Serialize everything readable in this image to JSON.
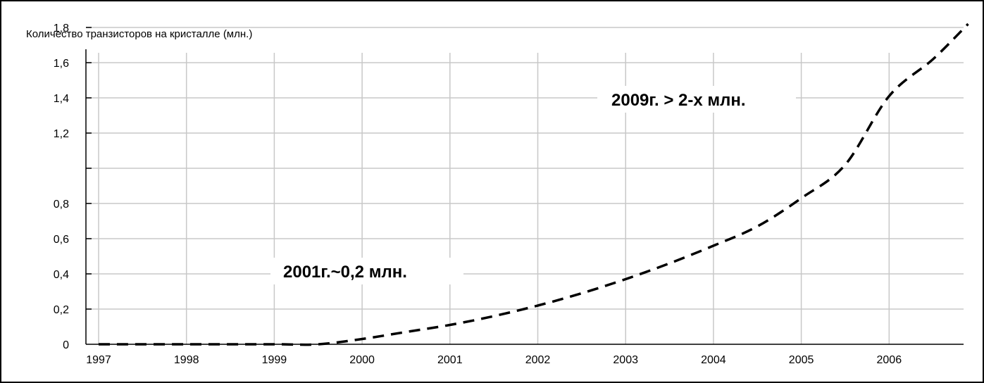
{
  "chart_data": {
    "type": "line",
    "title": "Количество транзисторов на кристалле (млн.)",
    "xlabel": "",
    "ylabel": "",
    "x_ticks": [
      "1997",
      "1998",
      "1999",
      "2000",
      "2001",
      "2002",
      "2003",
      "2004",
      "2005",
      "2006"
    ],
    "y_ticks": [
      "0",
      "0,2",
      "0,4",
      "0,6",
      "0,8",
      "1,2",
      "1,4",
      "1,6",
      "1,8"
    ],
    "xlim": [
      1997,
      2006.95
    ],
    "ylim": [
      0,
      1.8
    ],
    "grid": true,
    "series": [
      {
        "style": "dashed",
        "color": "#000000",
        "points": [
          {
            "x": 1997.0,
            "y": 0.0
          },
          {
            "x": 1998.0,
            "y": 0.0
          },
          {
            "x": 1999.0,
            "y": 0.0
          },
          {
            "x": 1999.5,
            "y": 0.0
          },
          {
            "x": 2000.0,
            "y": 0.03
          },
          {
            "x": 2000.5,
            "y": 0.07
          },
          {
            "x": 2001.0,
            "y": 0.11
          },
          {
            "x": 2001.5,
            "y": 0.16
          },
          {
            "x": 2002.0,
            "y": 0.22
          },
          {
            "x": 2002.5,
            "y": 0.29
          },
          {
            "x": 2003.0,
            "y": 0.37
          },
          {
            "x": 2003.5,
            "y": 0.46
          },
          {
            "x": 2004.0,
            "y": 0.56
          },
          {
            "x": 2004.5,
            "y": 0.67
          },
          {
            "x": 2005.0,
            "y": 0.83
          },
          {
            "x": 2005.5,
            "y": 1.02
          },
          {
            "x": 2006.0,
            "y": 1.41
          },
          {
            "x": 2006.5,
            "y": 1.62
          },
          {
            "x": 2006.9,
            "y": 1.82
          }
        ]
      }
    ],
    "annotations": [
      "2009г. > 2-х млн.",
      "2001г.~0,2 млн."
    ]
  }
}
